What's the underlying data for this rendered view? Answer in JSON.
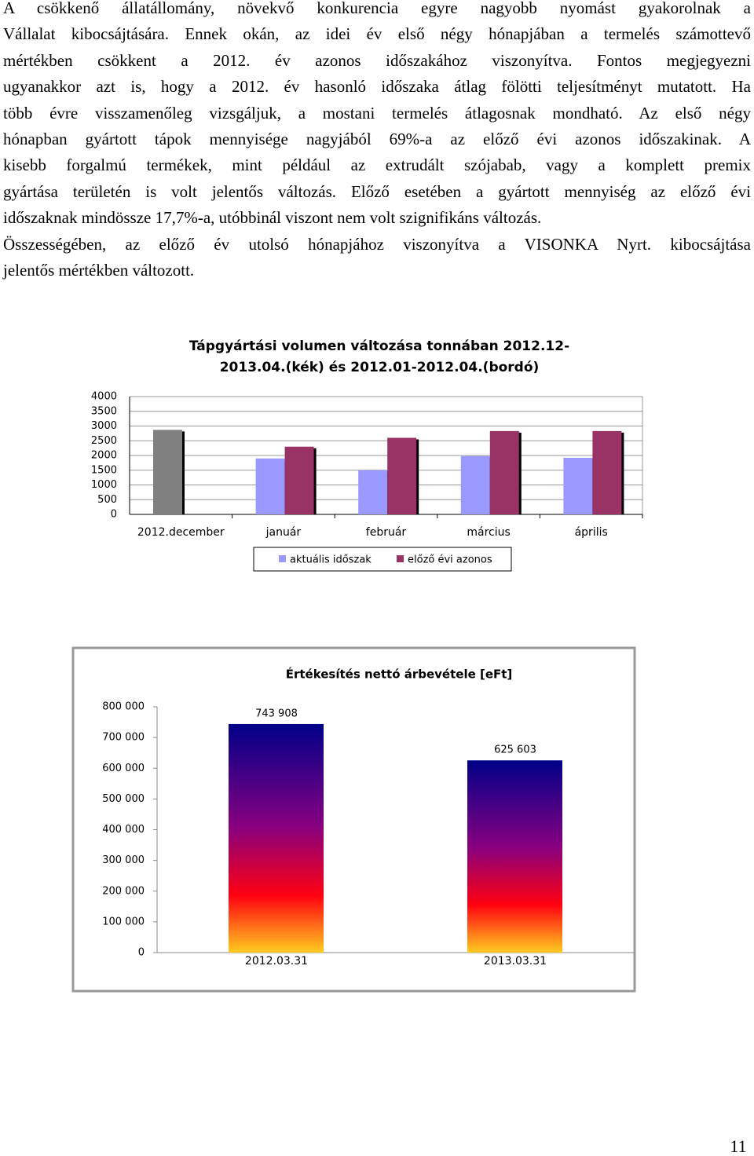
{
  "paragraphs": [
    [
      "A csökkenő állatállomány, növekvő konkurencia egyre nagyobb nyomást gyakorolnak a",
      "Vállalat kibocsájtására. Ennek okán, az idei év első négy hónapjában a termelés számottevő",
      "mértékben csökkent a 2012. év azonos időszakához viszonyítva. Fontos megjegyezni",
      "ugyanakkor azt is, hogy a 2012. év hasonló időszaka átlag fölötti teljesítményt mutatott. Ha",
      "több évre visszamenőleg vizsgáljuk, a mostani termelés átlagosnak mondható. Az első négy",
      "hónapban gyártott tápok mennyisége nagyjából 69%-a az előző évi azonos időszakinak. A",
      "kisebb forgalmú termékek, mint például az extrudált szójabab, vagy a komplett premix",
      "gyártása területén is volt jelentős változás. Előző esetében a gyártott mennyiség az előző évi",
      "időszaknak mindössze 17,7%-a, utóbbinál viszont nem volt szignifikáns változás."
    ],
    [
      "Összességében, az előző év utolsó hónapjához viszonyítva a VISONKA Nyrt. kibocsájtása",
      "jelentős mértékben változott."
    ]
  ],
  "chart_data": [
    {
      "type": "bar",
      "title": [
        "Tápgyártási volumen változása tonnában 2012.12-",
        "2013.04.(kék) és 2012.01-2012.04.(bordó)"
      ],
      "categories": [
        "2012.december",
        "január",
        "február",
        "március",
        "április"
      ],
      "series": [
        {
          "name": "aktuális időszak",
          "color": "#9999ff",
          "colors": [
            "#808080",
            "#9999ff",
            "#9999ff",
            "#9999ff",
            "#9999ff"
          ],
          "values": [
            2870,
            1900,
            1500,
            1980,
            1920
          ]
        },
        {
          "name": "előző évi azonos",
          "color": "#993366",
          "values": [
            null,
            2300,
            2600,
            2830,
            2830
          ]
        }
      ],
      "ylim": [
        0,
        4000
      ],
      "yticks": [
        0,
        500,
        1000,
        1500,
        2000,
        2500,
        3000,
        3500,
        4000
      ],
      "grid": true,
      "legend": "bottom"
    },
    {
      "type": "bar",
      "title": "Értékesítés nettó árbevétele [eFt]",
      "categories": [
        "2012.03.31",
        "2013.03.31"
      ],
      "values": [
        743908,
        625603
      ],
      "value_labels": [
        "743 908",
        "625 603"
      ],
      "ylim": [
        0,
        800000
      ],
      "yticks": [
        0,
        {
          "value": 100000,
          "label": "100 000"
        },
        {
          "value": 200000,
          "label": "200 000"
        },
        {
          "value": 300000,
          "label": "300 000"
        },
        {
          "value": 400000,
          "label": "400 000"
        },
        {
          "value": 500000,
          "label": "500 000"
        },
        {
          "value": 600000,
          "label": "600 000"
        },
        {
          "value": 700000,
          "label": "700 000"
        },
        {
          "value": 800000,
          "label": "800 000"
        }
      ]
    }
  ],
  "page_number": "11"
}
